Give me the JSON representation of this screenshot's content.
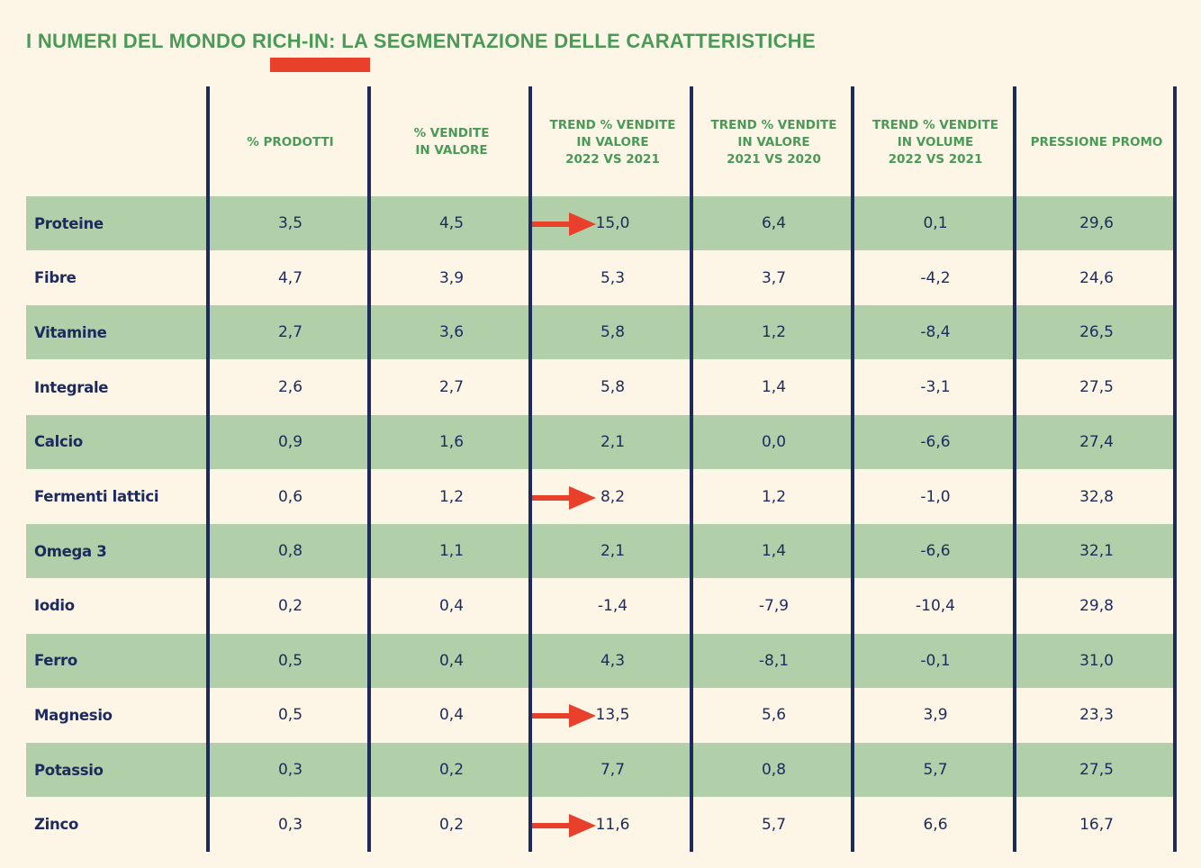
{
  "title": "I NUMERI DEL MONDO RICH-IN: LA SEGMENTAZIONE DELLE CARATTERISTICHE",
  "colors": {
    "background": "#fdf6e7",
    "title_green": "#4a9a57",
    "row_shade": "#b1cfa8",
    "navy": "#1d2a5e",
    "accent_red": "#e8402a"
  },
  "table": {
    "headers": [
      "% PRODOTTI",
      "% VENDITE\nIN VALORE",
      "TREND % VENDITE\nIN VALORE\n2022 VS 2021",
      "TREND % VENDITE\nIN VALORE\n2021 VS 2020",
      "TREND % VENDITE\nIN VOLUME\n2022 VS 2021",
      "PRESSIONE PROMO"
    ],
    "rows": [
      {
        "label": "Proteine",
        "values": [
          "3,5",
          "4,5",
          "15,0",
          "6,4",
          "0,1",
          "29,6"
        ],
        "highlight": true
      },
      {
        "label": "Fibre",
        "values": [
          "4,7",
          "3,9",
          "5,3",
          "3,7",
          "-4,2",
          "24,6"
        ],
        "highlight": false
      },
      {
        "label": "Vitamine",
        "values": [
          "2,7",
          "3,6",
          "5,8",
          "1,2",
          "-8,4",
          "26,5"
        ],
        "highlight": false
      },
      {
        "label": "Integrale",
        "values": [
          "2,6",
          "2,7",
          "5,8",
          "1,4",
          "-3,1",
          "27,5"
        ],
        "highlight": false
      },
      {
        "label": "Calcio",
        "values": [
          "0,9",
          "1,6",
          "2,1",
          "0,0",
          "-6,6",
          "27,4"
        ],
        "highlight": false
      },
      {
        "label": "Fermenti lattici",
        "values": [
          "0,6",
          "1,2",
          "8,2",
          "1,2",
          "-1,0",
          "32,8"
        ],
        "highlight": true
      },
      {
        "label": "Omega 3",
        "values": [
          "0,8",
          "1,1",
          "2,1",
          "1,4",
          "-6,6",
          "32,1"
        ],
        "highlight": false
      },
      {
        "label": "Iodio",
        "values": [
          "0,2",
          "0,4",
          "-1,4",
          "-7,9",
          "-10,4",
          "29,8"
        ],
        "highlight": false
      },
      {
        "label": "Ferro",
        "values": [
          "0,5",
          "0,4",
          "4,3",
          "-8,1",
          "-0,1",
          "31,0"
        ],
        "highlight": false
      },
      {
        "label": "Magnesio",
        "values": [
          "0,5",
          "0,4",
          "13,5",
          "5,6",
          "3,9",
          "23,3"
        ],
        "highlight": true
      },
      {
        "label": "Potassio",
        "values": [
          "0,3",
          "0,2",
          "7,7",
          "0,8",
          "5,7",
          "27,5"
        ],
        "highlight": false
      },
      {
        "label": "Zinco",
        "values": [
          "0,3",
          "0,2",
          "11,6",
          "5,7",
          "6,6",
          "16,7"
        ],
        "highlight": true
      }
    ]
  },
  "icons": {
    "highlight_marker": "right-arrow-icon"
  }
}
